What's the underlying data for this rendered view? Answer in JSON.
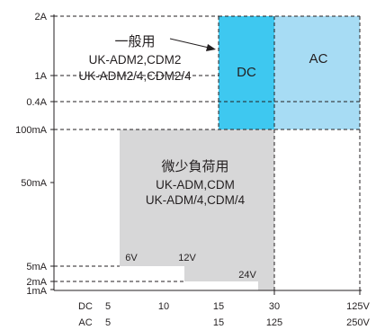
{
  "chart_data": {
    "type": "area",
    "y_ticks": [
      {
        "label": "2A",
        "value": 2000
      },
      {
        "label": "1A",
        "value": 1000
      },
      {
        "label": "0.4A",
        "value": 400
      },
      {
        "label": "100mA",
        "value": 100
      },
      {
        "label": "50mA",
        "value": 50
      },
      {
        "label": "5mA",
        "value": 5
      },
      {
        "label": "2mA",
        "value": 2
      },
      {
        "label": "1mA",
        "value": 1
      }
    ],
    "x_rows": [
      {
        "name": "DC",
        "ticks": [
          "5",
          "10",
          "15",
          "30",
          "125V"
        ]
      },
      {
        "name": "AC",
        "ticks": [
          "5",
          "15",
          "125",
          "250V"
        ]
      }
    ],
    "regions": {
      "general": {
        "title": "一般用",
        "lines": [
          "UK-ADM2,CDM2",
          "UK-ADM2/4,CDM2/4"
        ],
        "dc_label": "DC",
        "ac_label": "AC",
        "dc_color": "#3ec8f0",
        "ac_color": "#a7dcf4",
        "current_min": 100,
        "current_max": 2000
      },
      "micro": {
        "title": "微少負荷用",
        "lines": [
          "UK-ADM,CDM",
          "UK-ADM/4,CDM/4"
        ],
        "color": "#d7d7d8",
        "steps": [
          {
            "voltage_label": "6V",
            "voltage": 6,
            "current_min": 5
          },
          {
            "voltage_label": "12V",
            "voltage": 12,
            "current_min": 2
          },
          {
            "voltage_label": "24V",
            "voltage": 24,
            "current_min": 1
          }
        ],
        "current_max": 100
      }
    }
  }
}
